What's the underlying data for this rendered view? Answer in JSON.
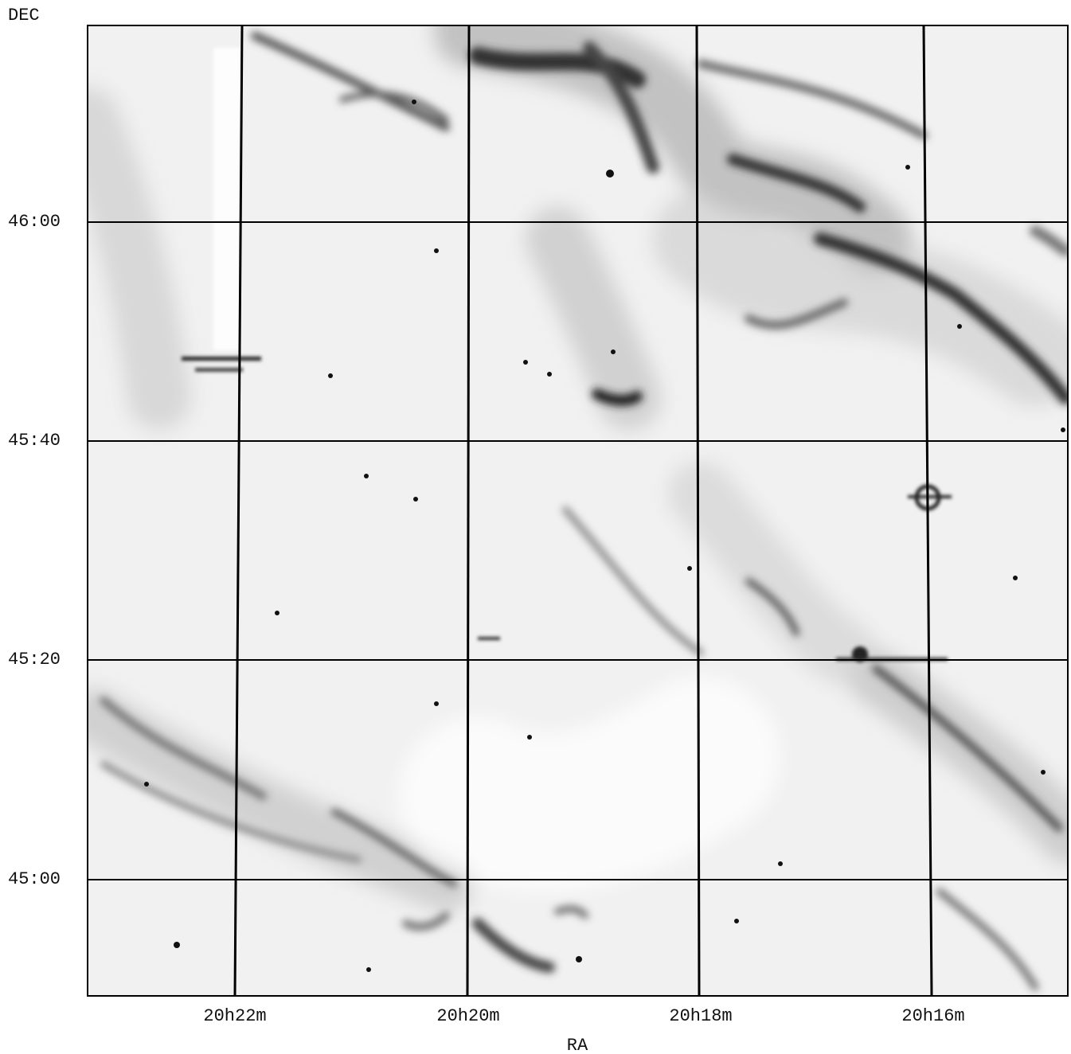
{
  "axes": {
    "y_label": "DEC",
    "x_label": "RA",
    "y_ticks": [
      "46:00",
      "45:40",
      "45:20",
      "45:00"
    ],
    "x_ticks": [
      "20h22m",
      "20h20m",
      "20h18m",
      "20h16m"
    ]
  }
}
